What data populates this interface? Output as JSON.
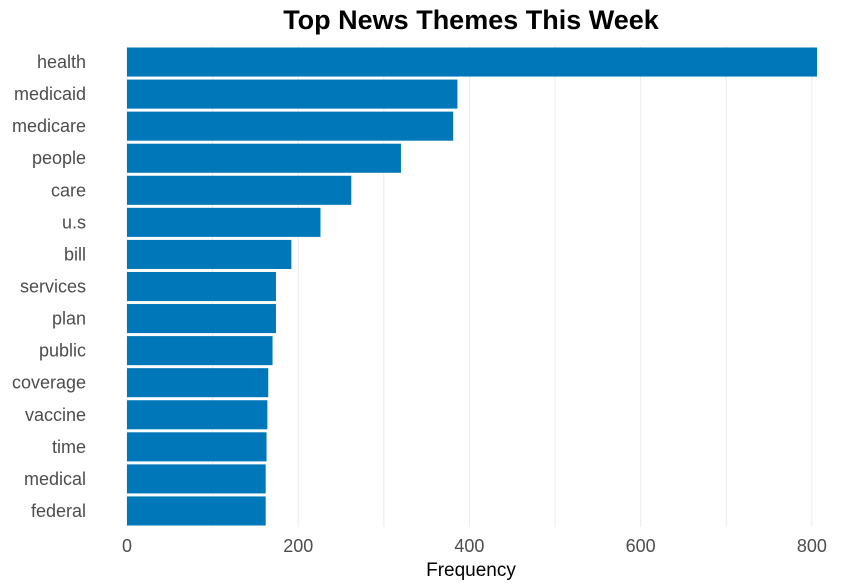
{
  "chart_data": {
    "type": "bar",
    "orientation": "horizontal",
    "title": "Top News Themes This Week",
    "xlabel": "Frequency",
    "ylabel": "",
    "categories": [
      "health",
      "medicaid",
      "medicare",
      "people",
      "care",
      "u.s",
      "bill",
      "services",
      "plan",
      "public",
      "coverage",
      "vaccine",
      "time",
      "medical",
      "federal"
    ],
    "values": [
      806,
      386,
      381,
      320,
      262,
      226,
      192,
      174,
      174,
      170,
      165,
      164,
      163,
      162,
      162
    ],
    "xlim": [
      0,
      806
    ],
    "xticks": [
      0,
      200,
      400,
      600,
      800
    ],
    "grid": true,
    "legend": "none",
    "colors": {
      "bar": "#0077b8",
      "grid": "#ebebeb",
      "tick_text": "#4d4d4d",
      "title_text": "#000000"
    }
  }
}
